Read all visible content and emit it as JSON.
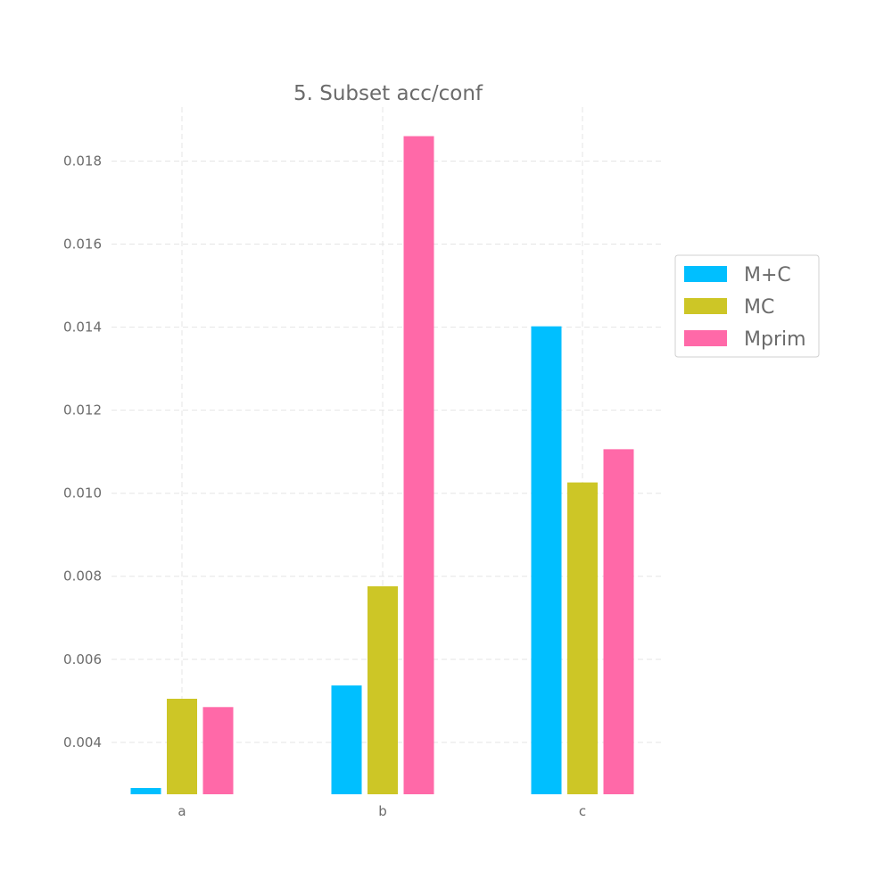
{
  "chart_data": {
    "type": "bar",
    "title": "5. Subset acc/conf",
    "xlabel": "",
    "ylabel": "",
    "categories": [
      "a",
      "b",
      "c"
    ],
    "series": [
      {
        "name": "M+C",
        "color": "#00bfff",
        "values": [
          0.0029,
          0.00537,
          0.01402
        ]
      },
      {
        "name": "MC",
        "color": "#cdc626",
        "values": [
          0.00505,
          0.00776,
          0.01026
        ]
      },
      {
        "name": "Mprim",
        "color": "#ff69a8",
        "values": [
          0.00485,
          0.0186,
          0.01106
        ]
      }
    ],
    "ylim": [
      0.00275,
      0.0193
    ],
    "yticks": [
      0.004,
      0.006,
      0.008,
      0.01,
      0.012,
      0.014,
      0.016,
      0.018
    ],
    "ytick_labels": [
      "0.004",
      "0.006",
      "0.008",
      "0.010",
      "0.012",
      "0.014",
      "0.016",
      "0.018"
    ],
    "grid": true,
    "legend_position": "right"
  }
}
